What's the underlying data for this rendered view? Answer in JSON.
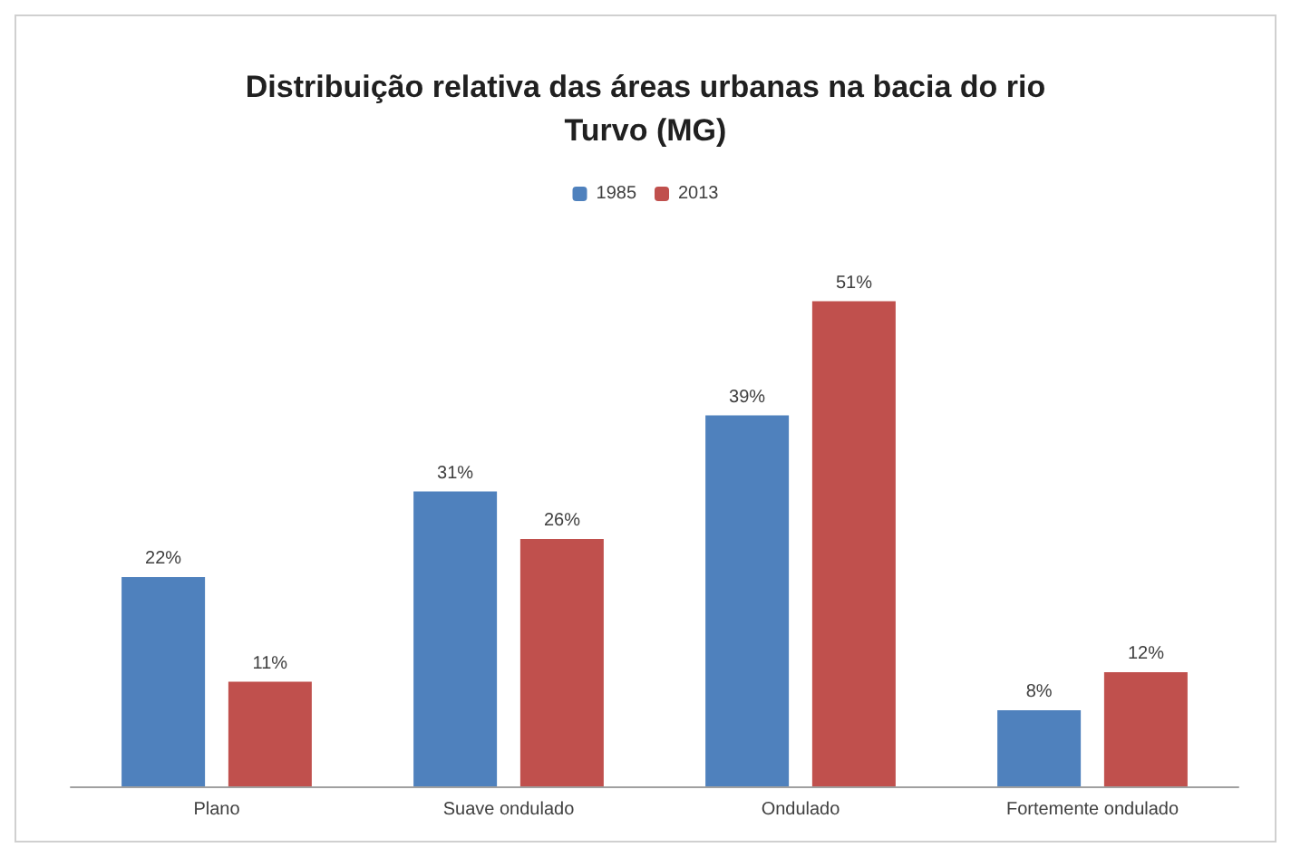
{
  "chart_data": {
    "type": "bar",
    "title": "Distribuição relativa das áreas urbanas na bacia do rio\nTurvo (MG)",
    "categories": [
      "Plano",
      "Suave ondulado",
      "Ondulado",
      "Fortemente ondulado"
    ],
    "series": [
      {
        "name": "1985",
        "color": "#4f81bd",
        "values": [
          22,
          31,
          39,
          8
        ],
        "value_labels": [
          "22%",
          "31%",
          "39%",
          "8%"
        ]
      },
      {
        "name": "2013",
        "color": "#c0504d",
        "values": [
          11,
          26,
          51,
          12
        ],
        "value_labels": [
          "11%",
          "26%",
          "51%",
          "12%"
        ]
      }
    ],
    "legend": "top",
    "grid": false
  }
}
